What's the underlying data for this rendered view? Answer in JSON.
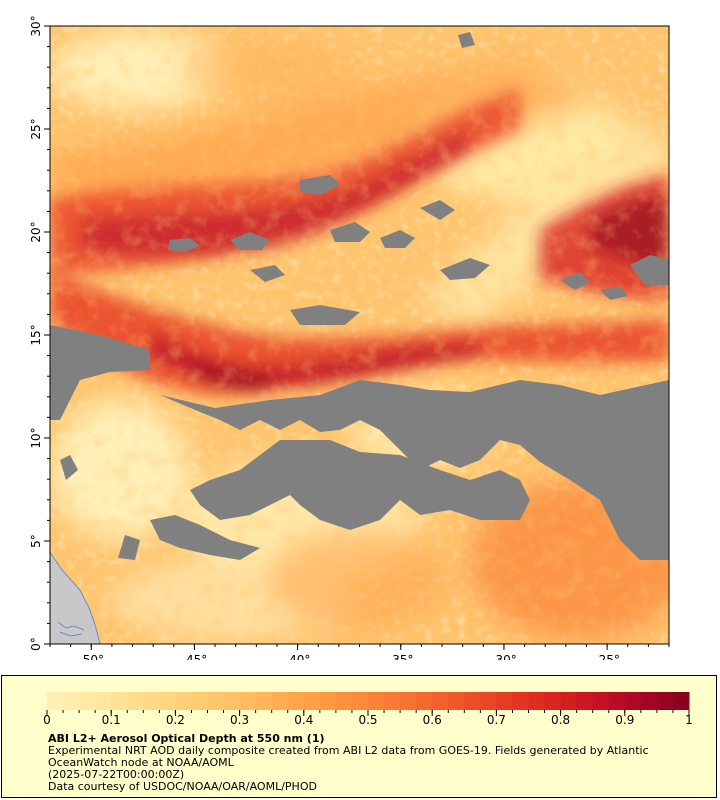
{
  "map": {
    "lat_axis": {
      "range": [
        0,
        30
      ],
      "ticks": [
        {
          "value": 0,
          "label": "0°"
        },
        {
          "value": 5,
          "label": "5°"
        },
        {
          "value": 10,
          "label": "10°"
        },
        {
          "value": 15,
          "label": "15°"
        },
        {
          "value": 20,
          "label": "20°"
        },
        {
          "value": 25,
          "label": "25°"
        },
        {
          "value": 30,
          "label": "30°"
        }
      ]
    },
    "lon_axis": {
      "range": [
        -52,
        -22
      ],
      "ticks": [
        {
          "value": -50,
          "label": "-50°"
        },
        {
          "value": -45,
          "label": "-45°"
        },
        {
          "value": -40,
          "label": "-40°"
        },
        {
          "value": -35,
          "label": "-35°"
        },
        {
          "value": -30,
          "label": "-30°"
        },
        {
          "value": -25,
          "label": "-25°"
        }
      ]
    },
    "colors": {
      "no_data": "#808080",
      "land": "#c8c8c8",
      "coast": "#6a8cc8"
    }
  },
  "colorbar": {
    "range": [
      0,
      1
    ],
    "labels": [
      "0",
      "0.1",
      "0.2",
      "0.3",
      "0.4",
      "0.5",
      "0.6",
      "0.7",
      "0.8",
      "0.9",
      "1"
    ],
    "colors": [
      "#fff0b8",
      "#ffe49a",
      "#ffd27c",
      "#ffbe62",
      "#ffa24a",
      "#fb8638",
      "#f4652c",
      "#e84024",
      "#d8201e",
      "#b40a28",
      "#86001e"
    ]
  },
  "legend": {
    "title": "ABI L2+ Aerosol Optical Depth at 550 nm (1)",
    "desc_line1": "Experimental NRT AOD daily composite created from ABI L2 data from GOES-19. Fields generated by Atlantic",
    "desc_line2": "OceanWatch node at NOAA/AOML",
    "time": "(2025-07-22T00:00:00Z)",
    "credit": "Data courtesy of USDOC/NOAA/OAR/AOML/PHOD"
  }
}
